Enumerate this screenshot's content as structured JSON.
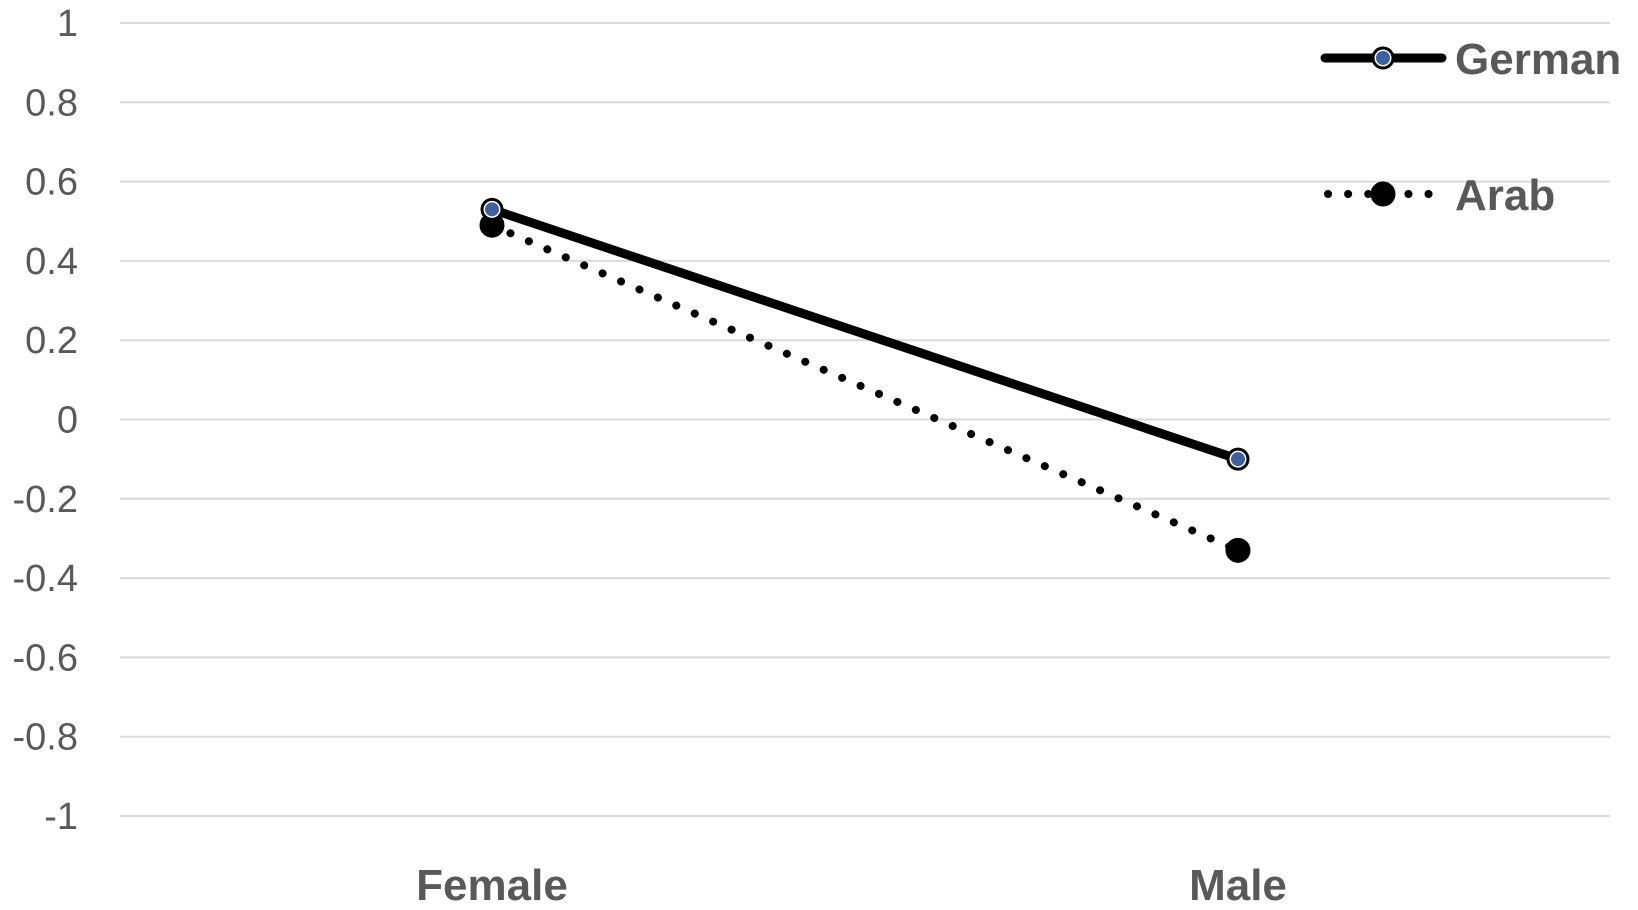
{
  "chart_data": {
    "type": "line",
    "title": "",
    "xlabel": "",
    "ylabel": "",
    "categories": [
      "Female",
      "Male"
    ],
    "ylim": [
      -1,
      1
    ],
    "yticks": [
      "1",
      "0.8",
      "0.6",
      "0.4",
      "0.2",
      "0",
      "-0.2",
      "-0.4",
      "-0.6",
      "-0.8",
      "-1"
    ],
    "ytick_values": [
      1,
      0.8,
      0.6,
      0.4,
      0.2,
      0,
      -0.2,
      -0.4,
      -0.6,
      -0.8,
      -1
    ],
    "grid": true,
    "legend_position": "top-right",
    "series": [
      {
        "name": "German",
        "values": [
          0.53,
          -0.1
        ],
        "line_style": "solid",
        "line_color": "#000000",
        "marker_fill": "#3f5f9f",
        "marker_stroke": "#000000"
      },
      {
        "name": "Arab",
        "values": [
          0.49,
          -0.33
        ],
        "line_style": "dotted",
        "line_color": "#000000",
        "marker_fill": "#000000",
        "marker_stroke": "#000000"
      }
    ],
    "colors": {
      "grid": "#d9d9d9",
      "tick_text": "#595959"
    }
  }
}
